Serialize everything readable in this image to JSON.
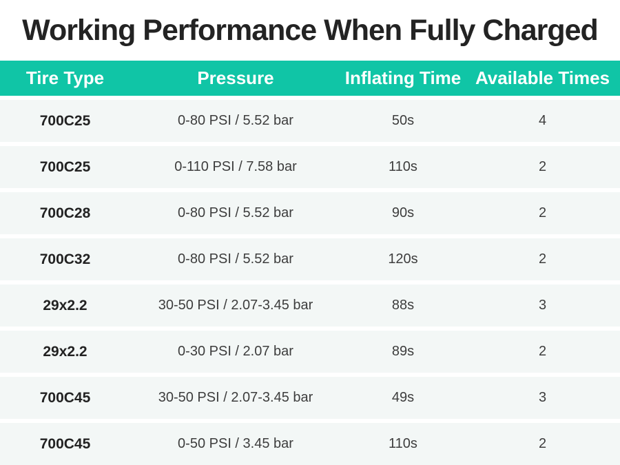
{
  "page": {
    "title": "Working Performance When Fully Charged"
  },
  "table": {
    "columns": [
      "Tire Type",
      "Pressure",
      "Inflating Time",
      "Available Times"
    ],
    "rows": [
      [
        "700C25",
        "0-80 PSI / 5.52 bar",
        "50s",
        "4"
      ],
      [
        "700C25",
        "0-110 PSI / 7.58 bar",
        "110s",
        "2"
      ],
      [
        "700C28",
        "0-80 PSI / 5.52 bar",
        "90s",
        "2"
      ],
      [
        "700C32",
        "0-80 PSI / 5.52 bar",
        "120s",
        "2"
      ],
      [
        "29x2.2",
        "30-50 PSI / 2.07-3.45 bar",
        "88s",
        "3"
      ],
      [
        "29x2.2",
        "0-30 PSI / 2.07 bar",
        "89s",
        "2"
      ],
      [
        "700C45",
        "30-50 PSI / 2.07-3.45 bar",
        "49s",
        "3"
      ],
      [
        "700C45",
        "0-50 PSI / 3.45 bar",
        "110s",
        "2"
      ]
    ]
  },
  "colors": {
    "header_bg": "#10c5a6",
    "header_text": "#ffffff",
    "row_bg": "#f3f7f6",
    "title_text": "#232323",
    "cell_text": "#3d3d3d",
    "tire_text": "#222222"
  },
  "chart_data": {
    "type": "table",
    "title": "Working Performance When Fully Charged",
    "columns": [
      "Tire Type",
      "Pressure",
      "Inflating Time",
      "Available Times"
    ],
    "rows": [
      [
        "700C25",
        "0-80 PSI / 5.52 bar",
        "50s",
        4
      ],
      [
        "700C25",
        "0-110 PSI / 7.58 bar",
        "110s",
        2
      ],
      [
        "700C28",
        "0-80 PSI / 5.52 bar",
        "90s",
        2
      ],
      [
        "700C32",
        "0-80 PSI / 5.52 bar",
        "120s",
        2
      ],
      [
        "29x2.2",
        "30-50 PSI / 2.07-3.45 bar",
        "88s",
        3
      ],
      [
        "29x2.2",
        "0-30 PSI / 2.07 bar",
        "89s",
        2
      ],
      [
        "700C45",
        "30-50 PSI / 2.07-3.45 bar",
        "49s",
        3
      ],
      [
        "700C45",
        "0-50 PSI / 3.45 bar",
        "110s",
        2
      ]
    ],
    "layout": {
      "header_position": "top",
      "row_striping": "uniform-light-rows-with-white-gaps",
      "column_alignment": [
        "center",
        "center",
        "center",
        "center"
      ]
    }
  }
}
